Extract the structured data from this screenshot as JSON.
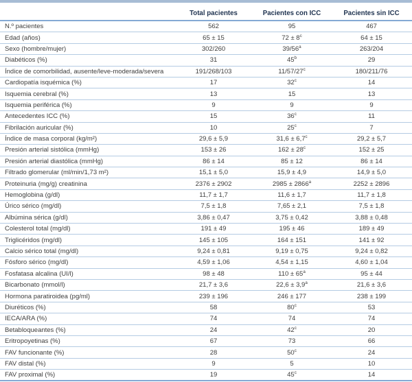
{
  "table": {
    "columns": [
      "",
      "Total pacientes",
      "Pacientes con ICC",
      "Pacientes sin ICC"
    ],
    "rows": [
      {
        "label": "N.º pacientes",
        "total": "562",
        "con_icc": "95",
        "sup": "",
        "sin_icc": "467"
      },
      {
        "label": "Edad (años)",
        "total": "65 ± 15",
        "con_icc": "72 ± 8",
        "sup": "c",
        "sin_icc": "64 ± 15"
      },
      {
        "label": "Sexo (hombre/mujer)",
        "total": "302/260",
        "con_icc": "39/56",
        "sup": "a",
        "sin_icc": "263/204"
      },
      {
        "label": "Diabéticos (%)",
        "total": "31",
        "con_icc": "45",
        "sup": "b",
        "sin_icc": "29"
      },
      {
        "label": "Índice de comorbilidad, ausente/leve-moderada/severa",
        "total": "191/268/103",
        "con_icc": "11/57/27",
        "sup": "c",
        "sin_icc": "180/211/76"
      },
      {
        "label": "Cardiopatía isquémica (%)",
        "total": "17",
        "con_icc": "32",
        "sup": "c",
        "sin_icc": "14"
      },
      {
        "label": "Isquemia cerebral (%)",
        "total": "13",
        "con_icc": "15",
        "sup": "",
        "sin_icc": "13"
      },
      {
        "label": "Isquemia periférica (%)",
        "total": "9",
        "con_icc": "9",
        "sup": "",
        "sin_icc": "9"
      },
      {
        "label": "Antecedentes ICC (%)",
        "total": "15",
        "con_icc": "36",
        "sup": "c",
        "sin_icc": "11"
      },
      {
        "label": "Fibrilación auricular (%)",
        "total": "10",
        "con_icc": "25",
        "sup": "c",
        "sin_icc": "7"
      },
      {
        "label": "Índice de masa corporal (kg/m²)",
        "total": "29,6 ± 5,9",
        "con_icc": "31,6 ± 6,7",
        "sup": "c",
        "sin_icc": "29,2 ± 5,7"
      },
      {
        "label": "Presión arterial sistólica (mmHg)",
        "total": "153 ± 26",
        "con_icc": "162 ± 28",
        "sup": "c",
        "sin_icc": "152 ± 25"
      },
      {
        "label": "Presión arterial diastólica (mmHg)",
        "total": "86 ± 14",
        "con_icc": "85 ± 12",
        "sup": "",
        "sin_icc": "86 ± 14"
      },
      {
        "label": "Filtrado glomerular (ml/min/1,73 m²)",
        "total": "15,1 ± 5,0",
        "con_icc": "15,9 ± 4,9",
        "sup": "",
        "sin_icc": "14,9 ± 5,0"
      },
      {
        "label": "Proteinuria (mg/g) creatinina",
        "total": "2376 ± 2902",
        "con_icc": "2985 ± 2866",
        "sup": "a",
        "sin_icc": "2252 ± 2896"
      },
      {
        "label": "Hemoglobina (g/dl)",
        "total": "11,7 ± 1,7",
        "con_icc": "11,6 ± 1,7",
        "sup": "",
        "sin_icc": "11,7 ± 1,8"
      },
      {
        "label": "Úrico sérico (mg/dl)",
        "total": "7,5 ± 1,8",
        "con_icc": "7,65 ± 2,1",
        "sup": "",
        "sin_icc": "7,5 ± 1,8"
      },
      {
        "label": "Albúmina sérica (g/dl)",
        "total": "3,86 ± 0,47",
        "con_icc": "3,75 ± 0,42",
        "sup": "",
        "sin_icc": "3,88 ± 0,48"
      },
      {
        "label": "Colesterol total (mg/dl)",
        "total": "191 ± 49",
        "con_icc": "195 ± 46",
        "sup": "",
        "sin_icc": "189 ± 49"
      },
      {
        "label": "Triglicéridos (mg/dl)",
        "total": "145 ± 105",
        "con_icc": "164 ± 151",
        "sup": "",
        "sin_icc": "141 ± 92"
      },
      {
        "label": "Calcio sérico total (mg/dl)",
        "total": "9,24 ± 0,81",
        "con_icc": "9,19 ± 0,75",
        "sup": "",
        "sin_icc": "9,24 ± 0,82"
      },
      {
        "label": "Fósforo sérico (mg/dl)",
        "total": "4,59 ± 1,06",
        "con_icc": "4,54 ± 1,15",
        "sup": "",
        "sin_icc": "4,60 ± 1,04"
      },
      {
        "label": "Fosfatasa alcalina (UI/l)",
        "total": "98 ± 48",
        "con_icc": "110 ± 65",
        "sup": "a",
        "sin_icc": "95 ± 44"
      },
      {
        "label": "Bicarbonato (mmol/l)",
        "total": "21,7 ± 3,6",
        "con_icc": "22,6 ± 3,9",
        "sup": "a",
        "sin_icc": "21,6 ± 3,6"
      },
      {
        "label": "Hormona paratiroidea (pg/ml)",
        "total": "239 ± 196",
        "con_icc": "246 ± 177",
        "sup": "",
        "sin_icc": "238 ± 199"
      },
      {
        "label": "Diuréticos (%)",
        "total": "58",
        "con_icc": "80",
        "sup": "c",
        "sin_icc": "53"
      },
      {
        "label": "IECA/ARA (%)",
        "total": "74",
        "con_icc": "74",
        "sup": "",
        "sin_icc": "74"
      },
      {
        "label": "Betabloqueantes (%)",
        "total": "24",
        "con_icc": "42",
        "sup": "c",
        "sin_icc": "20"
      },
      {
        "label": "Eritropoyetinas (%)",
        "total": "67",
        "con_icc": "73",
        "sup": "",
        "sin_icc": "66"
      },
      {
        "label": "FAV funcionante (%)",
        "total": "28",
        "con_icc": "50",
        "sup": "c",
        "sin_icc": "24"
      },
      {
        "label": "FAV distal (%)",
        "total": "9",
        "con_icc": "5",
        "sup": "",
        "sin_icc": "10"
      },
      {
        "label": "FAV proximal (%)",
        "total": "19",
        "con_icc": "45",
        "sup": "c",
        "sin_icc": "14"
      }
    ]
  },
  "colors": {
    "top_bar": "#a7bcd4",
    "rule_strong": "#84a9d4",
    "rule_light": "#b4cbe3",
    "header_text": "#1f3350",
    "body_text": "#3d3d3d"
  }
}
